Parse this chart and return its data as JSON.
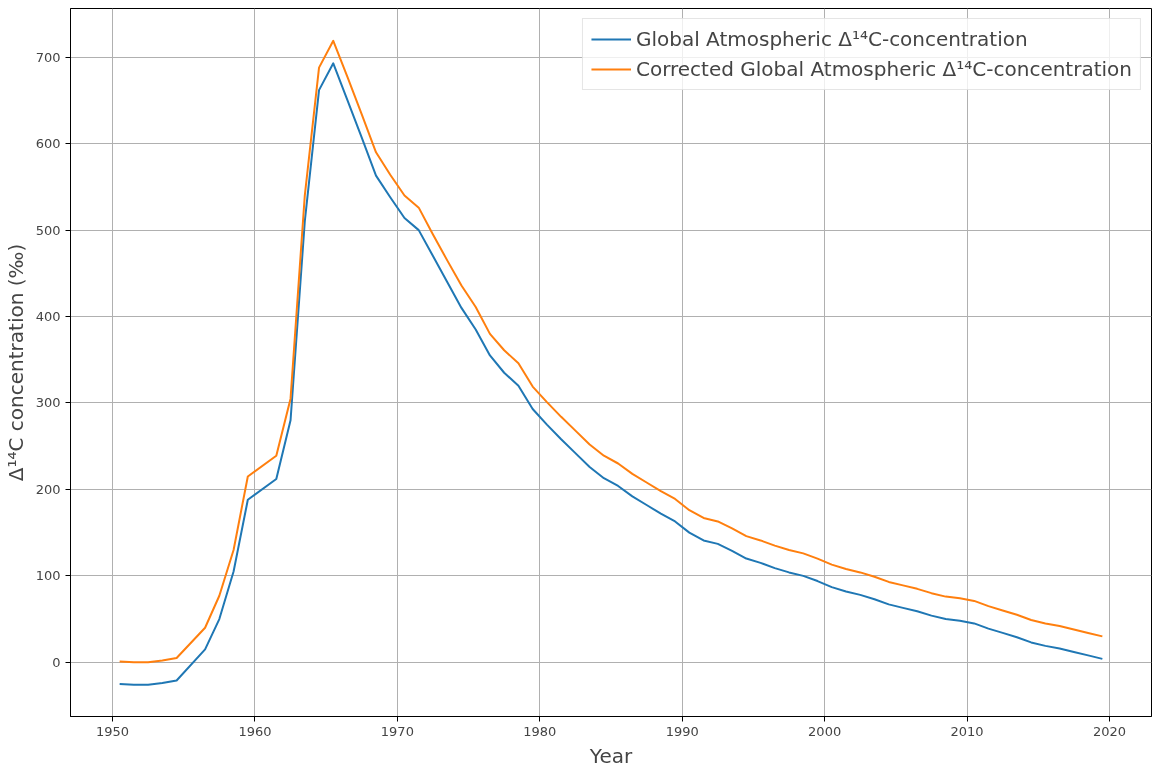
{
  "chart_data": {
    "type": "line",
    "xlabel": "Year",
    "ylabel": "Δ¹⁴C concentration (‰)",
    "x": [
      1950.5,
      1951.5,
      1952.5,
      1953.5,
      1954.5,
      1956.5,
      1957.5,
      1958.5,
      1959.5,
      1961.5,
      1962.5,
      1963.5,
      1964.5,
      1965.5,
      1966.5,
      1967.5,
      1968.5,
      1969.5,
      1970.5,
      1971.5,
      1972.5,
      1973.5,
      1974.5,
      1975.5,
      1976.5,
      1977.5,
      1978.5,
      1979.5,
      1980.5,
      1981.5,
      1982.5,
      1983.5,
      1984.5,
      1985.5,
      1986.5,
      1987.5,
      1988.5,
      1989.5,
      1990.5,
      1991.5,
      1992.5,
      1993.5,
      1994.5,
      1995.5,
      1996.5,
      1997.5,
      1998.5,
      1999.5,
      2000.5,
      2001.5,
      2002.5,
      2003.5,
      2004.5,
      2005.5,
      2006.5,
      2007.5,
      2008.5,
      2009.5,
      2010.5,
      2011.5,
      2012.5,
      2013.5,
      2014.5,
      2015.5,
      2016.5,
      2017.5,
      2018.5,
      2019.5
    ],
    "series": [
      {
        "name": "Global Atmospheric Δ¹⁴C-concentration",
        "color": "#1f77b4",
        "values": [
          -25,
          -26,
          -26,
          -24,
          -21,
          15,
          50,
          105,
          188,
          212,
          280,
          510,
          662,
          693,
          650,
          607,
          563,
          538,
          514,
          500,
          470,
          440,
          410,
          385,
          355,
          335,
          320,
          293,
          275,
          258,
          242,
          226,
          213,
          204,
          192,
          182,
          172,
          163,
          150,
          141,
          137,
          129,
          120,
          115,
          109,
          104,
          100,
          94,
          87,
          82,
          78,
          73,
          67,
          63,
          59,
          54,
          50,
          48,
          45,
          39,
          34,
          29,
          23,
          19,
          16,
          12,
          8,
          4
        ]
      },
      {
        "name": "Corrected Global Atmospheric Δ¹⁴C-concentration",
        "color": "#ff7f0e",
        "values": [
          1,
          0,
          0,
          2,
          5,
          40,
          77,
          130,
          215,
          239,
          305,
          540,
          688,
          719,
          677,
          634,
          590,
          564,
          540,
          526,
          495,
          465,
          436,
          411,
          380,
          361,
          346,
          319,
          301,
          284,
          268,
          252,
          239,
          230,
          218,
          208,
          198,
          189,
          176,
          167,
          163,
          155,
          146,
          141,
          135,
          130,
          126,
          120,
          113,
          108,
          104,
          99,
          93,
          89,
          85,
          80,
          76,
          74,
          71,
          65,
          60,
          55,
          49,
          45,
          42,
          38,
          34,
          30
        ]
      }
    ],
    "xlim": [
      1947.05,
      2022.95
    ],
    "ylim": [
      -62.7,
      756.4
    ],
    "xticks": [
      1950,
      1960,
      1970,
      1980,
      1990,
      2000,
      2010,
      2020
    ],
    "yticks": [
      0,
      100,
      200,
      300,
      400,
      500,
      600,
      700
    ],
    "grid": true,
    "legend": "top right",
    "line_style": "solid",
    "marker": "none"
  }
}
